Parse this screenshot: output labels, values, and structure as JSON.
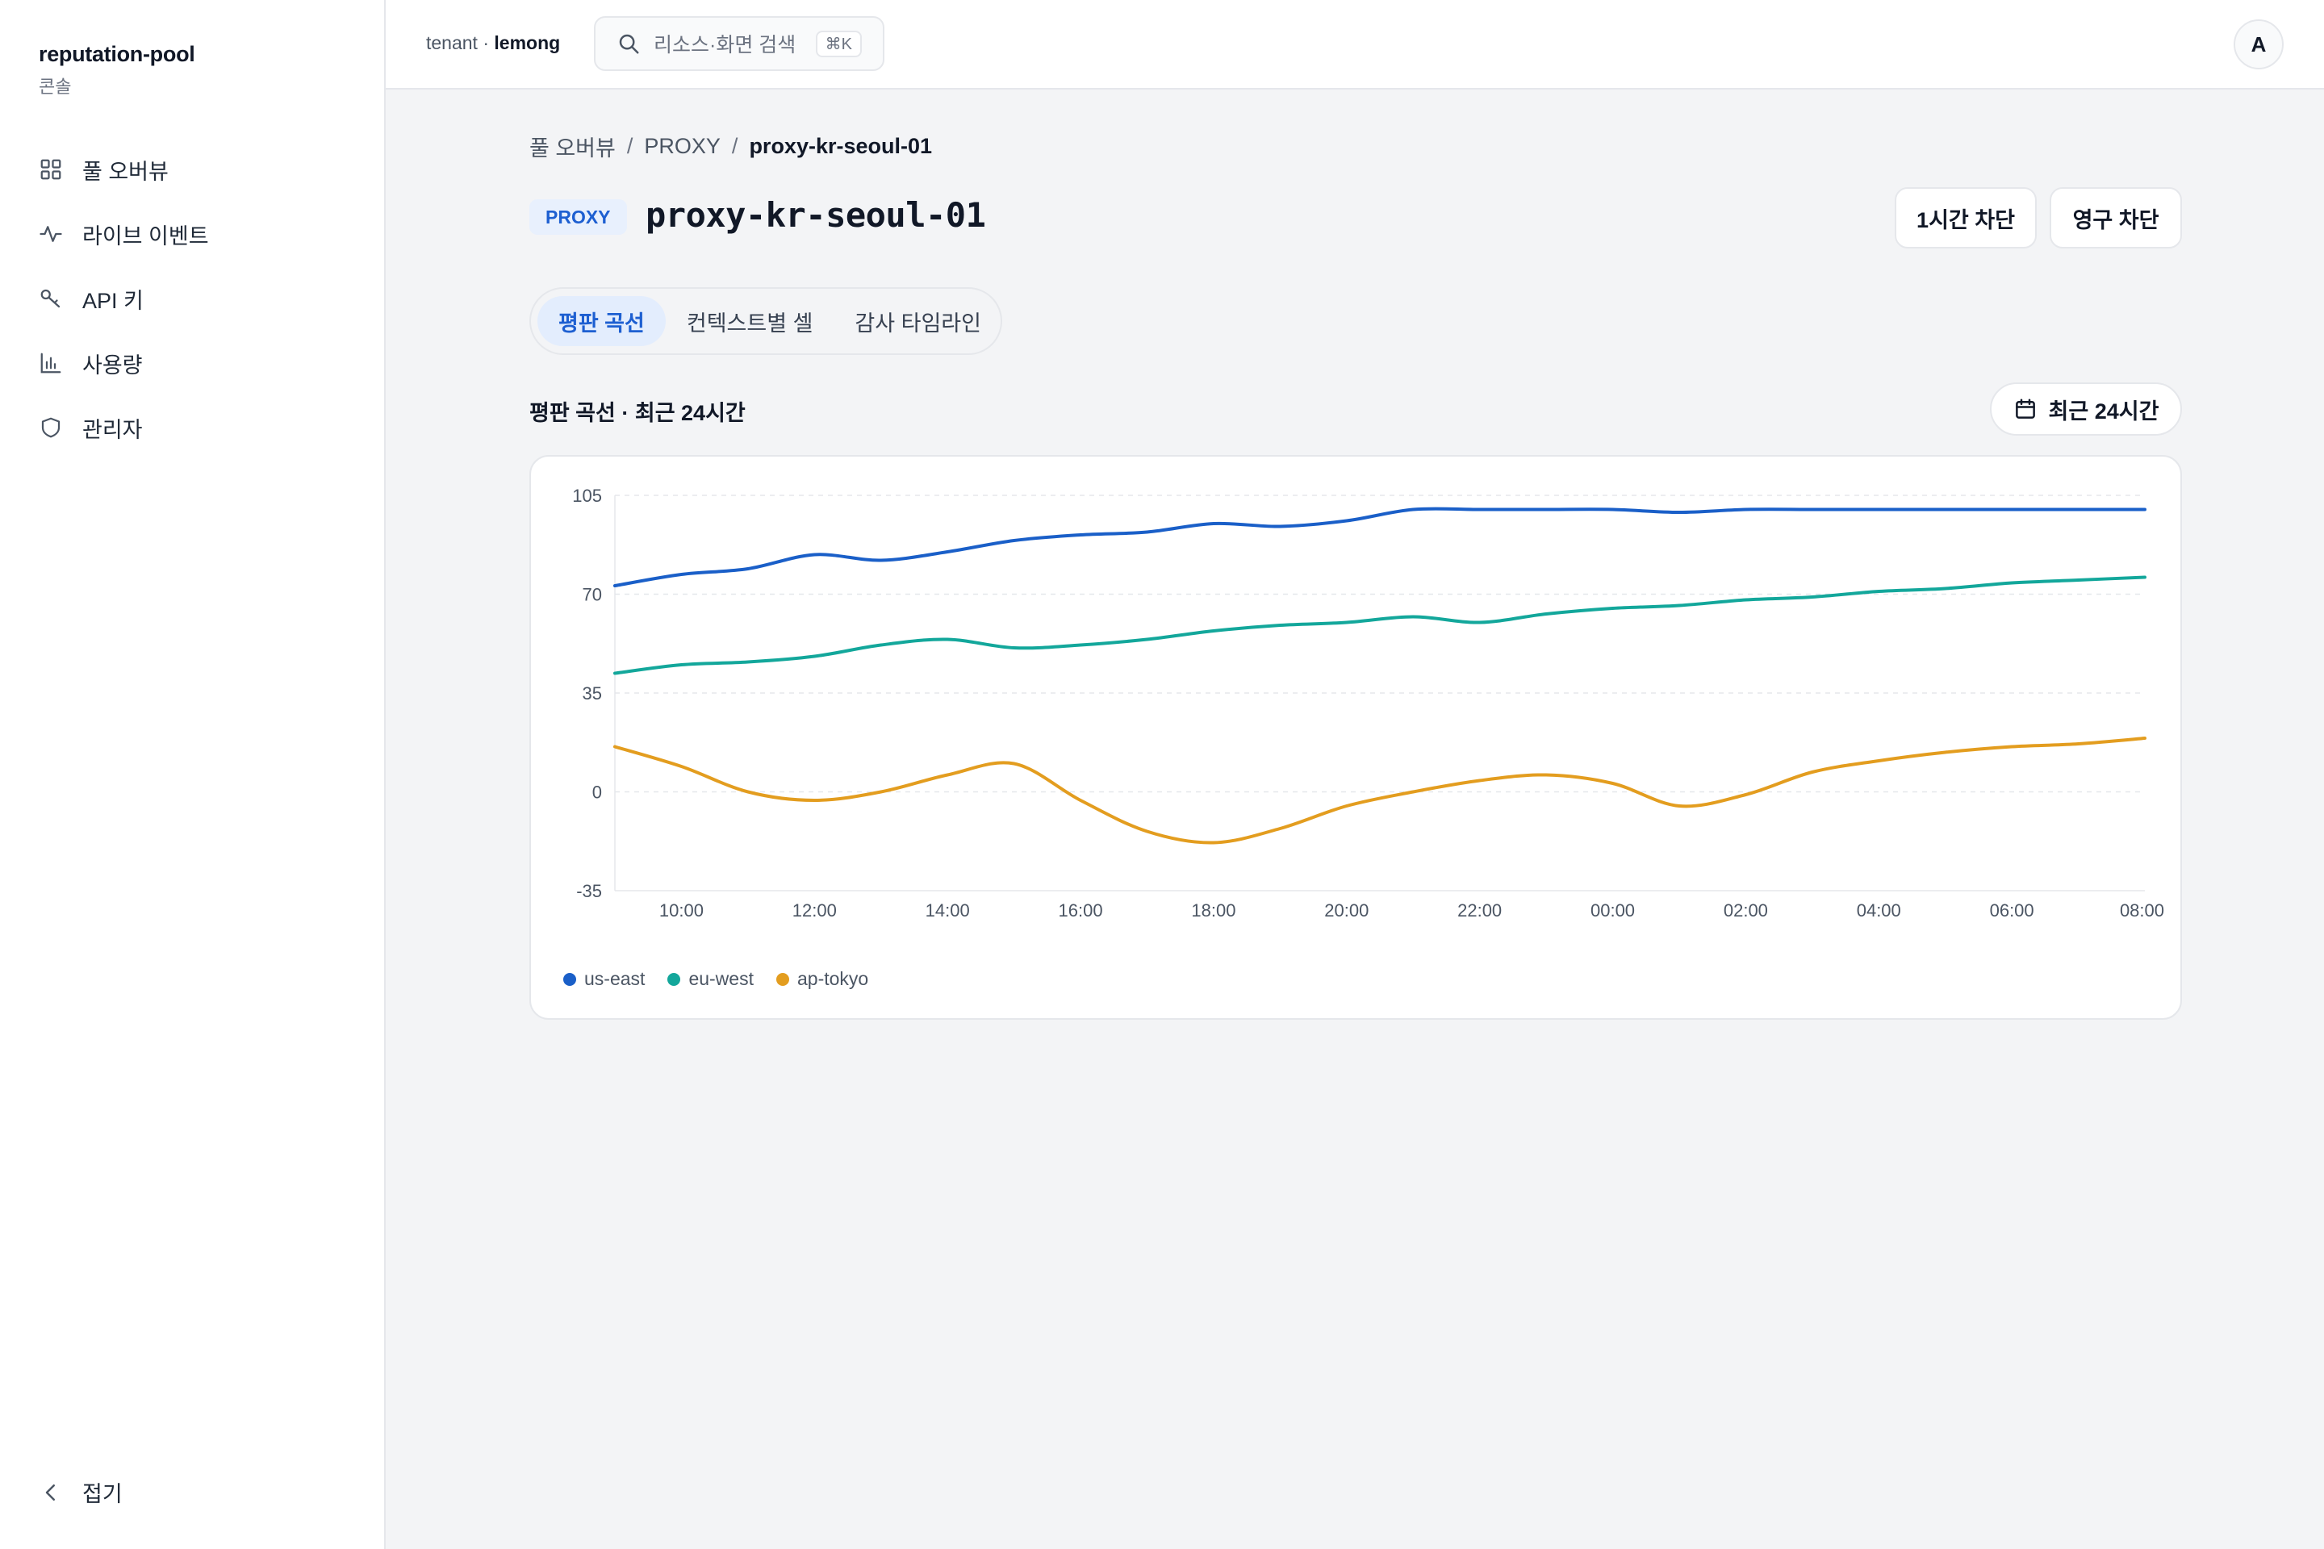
{
  "sidebar": {
    "brand": "reputation-pool",
    "brand_sub": "콘솔",
    "items": [
      {
        "label": "풀 오버뷰",
        "icon": "grid-icon"
      },
      {
        "label": "라이브 이벤트",
        "icon": "activity-icon"
      },
      {
        "label": "API 키",
        "icon": "key-icon"
      },
      {
        "label": "사용량",
        "icon": "bar-chart-icon"
      },
      {
        "label": "관리자",
        "icon": "shield-icon"
      }
    ],
    "collapse_label": "접기"
  },
  "topbar": {
    "tenant_prefix": "tenant · ",
    "tenant_name": "lemong",
    "search_placeholder": "리소스·화면 검색",
    "search_shortcut": "⌘K",
    "avatar_initial": "A"
  },
  "breadcrumb": {
    "items": [
      "풀 오버뷰",
      "PROXY",
      "proxy-kr-seoul-01"
    ],
    "separator": "/"
  },
  "header": {
    "badge": "PROXY",
    "title": "proxy-kr-seoul-01",
    "block_1h": "1시간 차단",
    "block_permanent": "영구 차단"
  },
  "tabs": [
    "평판 곡선",
    "컨텍스트별 셀",
    "감사 타임라인"
  ],
  "active_tab": 0,
  "section": {
    "title": "평판 곡선 · 최근 24시간",
    "range_label": "최근 24시간"
  },
  "colors": {
    "accent": "#1d5fd1",
    "us_east": "#1a5fc8",
    "eu_west": "#13a79b",
    "ap_tokyo": "#e39d1f"
  },
  "chart_data": {
    "type": "line",
    "x": [
      "09:00",
      "10:00",
      "11:00",
      "12:00",
      "13:00",
      "14:00",
      "15:00",
      "16:00",
      "17:00",
      "18:00",
      "19:00",
      "20:00",
      "21:00",
      "22:00",
      "23:00",
      "00:00",
      "01:00",
      "02:00",
      "03:00",
      "04:00",
      "05:00",
      "06:00",
      "07:00",
      "08:00"
    ],
    "x_tick_labels": [
      "10:00",
      "12:00",
      "14:00",
      "16:00",
      "18:00",
      "20:00",
      "22:00",
      "00:00",
      "02:00",
      "04:00",
      "06:00",
      "08:00"
    ],
    "ylim": [
      -35,
      105
    ],
    "y_ticks": [
      105,
      70,
      35,
      0,
      -35
    ],
    "grid": true,
    "legend_position": "bottom-left",
    "series": [
      {
        "name": "us-east",
        "color": "#1a5fc8",
        "values": [
          73,
          77,
          79,
          84,
          82,
          85,
          89,
          91,
          92,
          95,
          94,
          96,
          100,
          100,
          100,
          100,
          99,
          100,
          100,
          100,
          100,
          100,
          100,
          100
        ]
      },
      {
        "name": "eu-west",
        "color": "#13a79b",
        "values": [
          42,
          45,
          46,
          48,
          52,
          54,
          51,
          52,
          54,
          57,
          59,
          60,
          62,
          60,
          63,
          65,
          66,
          68,
          69,
          71,
          72,
          74,
          75,
          76
        ]
      },
      {
        "name": "ap-tokyo",
        "color": "#e39d1f",
        "values": [
          16,
          9,
          0,
          -3,
          0,
          6,
          10,
          -3,
          -14,
          -18,
          -13,
          -5,
          0,
          4,
          6,
          3,
          -5,
          -1,
          7,
          11,
          14,
          16,
          17,
          19
        ]
      }
    ]
  }
}
